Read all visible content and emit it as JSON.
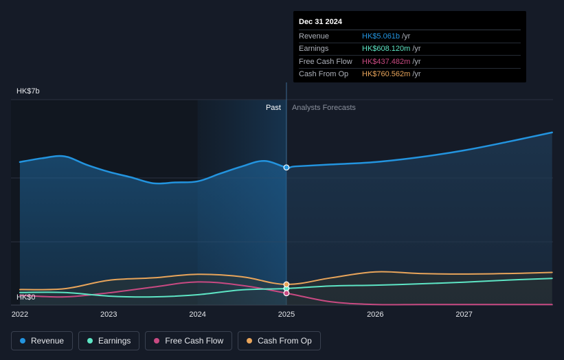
{
  "chart_data": {
    "type": "line",
    "ylabel_top": "HK$7b",
    "ylabel_bottom": "HK$0",
    "ylim": [
      0,
      7
    ],
    "xlim": [
      2021.9,
      2028.0
    ],
    "x_ticks": [
      "2022",
      "2023",
      "2024",
      "2025",
      "2026",
      "2027"
    ],
    "x_tick_values": [
      2022,
      2023,
      2024,
      2025,
      2026,
      2027
    ],
    "past_label": "Past",
    "forecast_label": "Analysts Forecasts",
    "divider_x": 2025.0,
    "series": [
      {
        "name": "Revenue",
        "color": "#2394df",
        "points": [
          [
            2022.0,
            5.26
          ],
          [
            2022.25,
            5.4
          ],
          [
            2022.5,
            5.47
          ],
          [
            2022.75,
            5.16
          ],
          [
            2023.0,
            4.9
          ],
          [
            2023.25,
            4.7
          ],
          [
            2023.5,
            4.48
          ],
          [
            2023.75,
            4.51
          ],
          [
            2024.0,
            4.55
          ],
          [
            2024.25,
            4.83
          ],
          [
            2024.5,
            5.1
          ],
          [
            2024.75,
            5.3
          ],
          [
            2025.0,
            5.061
          ],
          [
            2025.1,
            5.1
          ],
          [
            2025.5,
            5.17
          ],
          [
            2026.0,
            5.26
          ],
          [
            2026.5,
            5.44
          ],
          [
            2027.0,
            5.69
          ],
          [
            2027.5,
            6.01
          ],
          [
            2027.99,
            6.35
          ]
        ],
        "fill": true
      },
      {
        "name": "Earnings",
        "color": "#5ee6c5",
        "points": [
          [
            2022.0,
            0.46
          ],
          [
            2022.5,
            0.46
          ],
          [
            2023.0,
            0.33
          ],
          [
            2023.5,
            0.3
          ],
          [
            2024.0,
            0.38
          ],
          [
            2024.5,
            0.56
          ],
          [
            2025.0,
            0.608
          ],
          [
            2025.5,
            0.7
          ],
          [
            2026.0,
            0.73
          ],
          [
            2026.5,
            0.78
          ],
          [
            2027.0,
            0.84
          ],
          [
            2027.5,
            0.92
          ],
          [
            2027.99,
            0.98
          ]
        ]
      },
      {
        "name": "Free Cash Flow",
        "color": "#c94a82",
        "points": [
          [
            2022.0,
            0.36
          ],
          [
            2022.5,
            0.3
          ],
          [
            2023.0,
            0.45
          ],
          [
            2023.5,
            0.66
          ],
          [
            2024.0,
            0.85
          ],
          [
            2024.5,
            0.72
          ],
          [
            2025.0,
            0.437
          ],
          [
            2025.5,
            0.12
          ],
          [
            2026.0,
            0.02
          ],
          [
            2026.5,
            0.02
          ],
          [
            2027.0,
            0.02
          ],
          [
            2027.5,
            0.02
          ],
          [
            2027.99,
            0.02
          ]
        ]
      },
      {
        "name": "Cash From Op",
        "color": "#e9a55b",
        "points": [
          [
            2022.0,
            0.57
          ],
          [
            2022.5,
            0.6
          ],
          [
            2023.0,
            0.91
          ],
          [
            2023.5,
            1.0
          ],
          [
            2024.0,
            1.13
          ],
          [
            2024.5,
            1.04
          ],
          [
            2025.0,
            0.76
          ],
          [
            2025.5,
            1.0
          ],
          [
            2026.0,
            1.22
          ],
          [
            2026.5,
            1.16
          ],
          [
            2027.0,
            1.14
          ],
          [
            2027.5,
            1.16
          ],
          [
            2027.99,
            1.2
          ]
        ]
      }
    ]
  },
  "tooltip": {
    "date": "Dec 31 2024",
    "rows": [
      {
        "label": "Revenue",
        "value": "HK$5.061b",
        "unit": "/yr",
        "color": "#2394df"
      },
      {
        "label": "Earnings",
        "value": "HK$608.120m",
        "unit": "/yr",
        "color": "#5ee6c5"
      },
      {
        "label": "Free Cash Flow",
        "value": "HK$437.482m",
        "unit": "/yr",
        "color": "#c94a82"
      },
      {
        "label": "Cash From Op",
        "value": "HK$760.562m",
        "unit": "/yr",
        "color": "#e9a55b"
      }
    ]
  },
  "legend": [
    {
      "label": "Revenue",
      "color": "#2394df"
    },
    {
      "label": "Earnings",
      "color": "#5ee6c5"
    },
    {
      "label": "Free Cash Flow",
      "color": "#c94a82"
    },
    {
      "label": "Cash From Op",
      "color": "#e9a55b"
    }
  ]
}
